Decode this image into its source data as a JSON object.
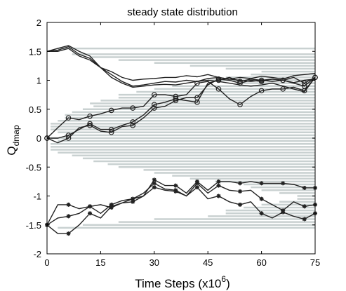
{
  "chart_data": {
    "type": "line",
    "title": "steady state distribution",
    "xlabel": {
      "text": "Time Steps (x10",
      "superscript": "6",
      "close": ")"
    },
    "ylabel": {
      "text": "Q",
      "subscript": "dmap"
    },
    "xlim": [
      0,
      75
    ],
    "ylim": [
      -2,
      2
    ],
    "xticks": [
      0,
      15,
      30,
      45,
      60,
      75
    ],
    "yticks": [
      2,
      1.5,
      1,
      0.5,
      0,
      -0.5,
      -1,
      -1.5,
      -2
    ],
    "ytick_labels": [
      "2",
      "1.5",
      "1",
      "0.5",
      "0",
      "-0.5",
      "-1",
      "-1.5",
      "-2"
    ],
    "grid": false,
    "histogram": {
      "color": "#c9d1d1",
      "note_orientation": "horizontal bars growing leftward from right axis",
      "bins_y": [
        1.55,
        1.45,
        1.4,
        1.35,
        1.3,
        1.25,
        1.2,
        1.15,
        1.1,
        1.05,
        1.0,
        0.95,
        0.9,
        0.85,
        0.8,
        0.75,
        0.7,
        0.65,
        0.6,
        0.55,
        0.5,
        0.45,
        0.4,
        0.35,
        0.3,
        0.25,
        0.2,
        0.15,
        0.1,
        0.05,
        0.0,
        -0.05,
        -0.1,
        -0.15,
        -0.2,
        -0.25,
        -0.3,
        -0.35,
        -0.4,
        -0.45,
        -0.5,
        -0.55,
        -0.6,
        -0.65,
        -0.7,
        -0.75,
        -0.8,
        -0.85,
        -0.9,
        -0.95,
        -1.0,
        -1.05,
        -1.1,
        -1.15,
        -1.2,
        -1.25,
        -1.3,
        -1.35,
        -1.4,
        -1.45,
        -1.5,
        -1.55
      ],
      "bins_x": [
        72,
        68,
        63,
        55,
        45,
        35,
        25,
        15,
        18,
        25,
        30,
        22,
        40,
        45,
        50,
        55,
        55,
        60,
        63,
        62,
        65,
        68,
        70,
        70,
        72,
        74,
        74,
        74,
        72,
        70,
        74,
        72,
        74,
        74,
        74,
        72,
        68,
        65,
        62,
        58,
        55,
        48,
        45,
        40,
        35,
        28,
        20,
        18,
        15,
        10,
        5,
        5,
        10,
        15,
        20,
        25,
        25,
        30,
        45,
        55,
        65,
        72
      ]
    },
    "series": [
      {
        "marker": "none",
        "x": [
          0,
          3,
          6,
          9,
          12,
          15,
          18,
          21,
          24,
          27,
          30,
          33,
          36,
          39,
          42,
          45,
          48,
          51,
          54,
          57,
          60,
          63,
          66,
          69,
          72,
          75
        ],
        "y": [
          1.5,
          1.52,
          1.58,
          1.45,
          1.38,
          1.22,
          1.1,
          0.98,
          0.9,
          0.92,
          0.95,
          0.98,
          0.97,
          1.0,
          0.98,
          1.03,
          1.05,
          1.02,
          1.0,
          0.98,
          1.0,
          1.02,
          1.0,
          0.96,
          1.0,
          1.02
        ]
      },
      {
        "marker": "none",
        "x": [
          0,
          3,
          6,
          9,
          12,
          15,
          18,
          21,
          24,
          27,
          30,
          33,
          36,
          39,
          42,
          45,
          48,
          51,
          54,
          57,
          60,
          63,
          66,
          69,
          72,
          75
        ],
        "y": [
          1.5,
          1.55,
          1.6,
          1.5,
          1.42,
          1.22,
          1.15,
          1.05,
          1.0,
          1.02,
          1.03,
          1.05,
          1.05,
          1.08,
          1.06,
          1.1,
          1.05,
          1.02,
          1.05,
          1.03,
          1.07,
          1.05,
          1.02,
          1.08,
          1.1,
          1.12
        ]
      },
      {
        "marker": "none",
        "x": [
          0,
          3,
          6,
          9,
          12,
          15,
          18,
          21,
          24,
          27,
          30,
          33,
          36,
          39,
          42,
          45,
          48,
          51,
          54,
          57,
          60,
          63,
          66,
          69,
          72,
          75
        ],
        "y": [
          1.5,
          1.5,
          1.55,
          1.42,
          1.35,
          1.22,
          1.05,
          0.95,
          0.88,
          0.9,
          0.92,
          0.93,
          0.92,
          0.95,
          0.98,
          1.0,
          0.98,
          0.95,
          0.92,
          0.9,
          0.92,
          0.95,
          0.9,
          0.85,
          0.8,
          1.05
        ]
      },
      {
        "marker": "circle",
        "x": [
          0,
          3,
          6,
          9,
          12,
          15,
          18,
          21,
          24,
          27,
          30,
          33,
          36,
          39,
          42,
          45,
          48,
          51,
          54,
          57,
          60,
          63,
          66,
          69,
          72,
          75
        ],
        "y": [
          0.0,
          0.18,
          0.35,
          0.32,
          0.38,
          0.42,
          0.48,
          0.52,
          0.52,
          0.55,
          0.75,
          0.75,
          0.72,
          0.75,
          0.95,
          0.98,
          0.85,
          0.68,
          0.58,
          0.72,
          0.82,
          0.85,
          0.85,
          0.88,
          0.82,
          1.05
        ]
      },
      {
        "marker": "circle",
        "x": [
          0,
          3,
          6,
          9,
          12,
          15,
          18,
          21,
          24,
          27,
          30,
          33,
          36,
          39,
          42,
          45,
          48,
          51,
          54,
          57,
          60,
          63,
          66,
          69,
          72,
          75
        ],
        "y": [
          0.0,
          -0.08,
          0.0,
          0.18,
          0.22,
          0.12,
          0.1,
          0.2,
          0.22,
          0.35,
          0.52,
          0.55,
          0.65,
          0.7,
          0.7,
          0.92,
          1.02,
          1.0,
          0.95,
          1.0,
          0.98,
          1.02,
          1.0,
          1.05,
          0.95,
          1.05
        ]
      },
      {
        "marker": "circle",
        "x": [
          0,
          3,
          6,
          9,
          12,
          15,
          18,
          21,
          24,
          27,
          30,
          33,
          36,
          39,
          42,
          45,
          48,
          51,
          54,
          57,
          60,
          63,
          66,
          69,
          72,
          75
        ],
        "y": [
          0.0,
          0.0,
          0.05,
          0.15,
          0.25,
          0.15,
          0.15,
          0.22,
          0.28,
          0.4,
          0.58,
          0.62,
          0.68,
          0.65,
          0.62,
          0.95,
          1.0,
          1.05,
          0.98,
          1.02,
          1.0,
          0.98,
          1.0,
          0.95,
          0.9,
          1.05
        ]
      },
      {
        "marker": "star",
        "x": [
          0,
          3,
          6,
          9,
          12,
          15,
          18,
          21,
          24,
          27,
          30,
          33,
          36,
          39,
          42,
          45,
          48,
          51,
          54,
          57,
          60,
          63,
          66,
          69,
          72,
          75
        ],
        "y": [
          -1.5,
          -1.15,
          -1.15,
          -1.22,
          -1.18,
          -1.15,
          -1.2,
          -1.12,
          -1.05,
          -1.0,
          -0.72,
          -0.82,
          -0.82,
          -0.95,
          -0.75,
          -0.9,
          -0.75,
          -0.75,
          -0.78,
          -0.75,
          -0.78,
          -0.78,
          -0.78,
          -0.8,
          -0.86,
          -0.86
        ]
      },
      {
        "marker": "star",
        "x": [
          0,
          3,
          6,
          9,
          12,
          15,
          18,
          21,
          24,
          27,
          30,
          33,
          36,
          39,
          42,
          45,
          48,
          51,
          54,
          57,
          60,
          63,
          66,
          69,
          72,
          75
        ],
        "y": [
          -1.5,
          -1.38,
          -1.35,
          -1.3,
          -1.18,
          -1.3,
          -1.15,
          -1.08,
          -1.05,
          -0.95,
          -0.78,
          -0.88,
          -0.9,
          -1.0,
          -0.78,
          -0.95,
          -0.82,
          -0.9,
          -0.92,
          -0.9,
          -1.05,
          -1.15,
          -1.25,
          -1.1,
          -1.18,
          -1.15
        ]
      },
      {
        "marker": "star",
        "x": [
          0,
          3,
          6,
          9,
          12,
          15,
          18,
          21,
          24,
          27,
          30,
          33,
          36,
          39,
          42,
          45,
          48,
          51,
          54,
          57,
          60,
          63,
          66,
          69,
          72,
          75
        ],
        "y": [
          -1.5,
          -1.65,
          -1.65,
          -1.5,
          -1.3,
          -1.38,
          -1.18,
          -1.12,
          -1.1,
          -1.0,
          -0.85,
          -0.9,
          -0.92,
          -1.0,
          -0.85,
          -1.05,
          -1.0,
          -1.1,
          -1.15,
          -1.1,
          -1.3,
          -1.38,
          -1.28,
          -1.35,
          -1.4,
          -1.3
        ]
      }
    ]
  }
}
